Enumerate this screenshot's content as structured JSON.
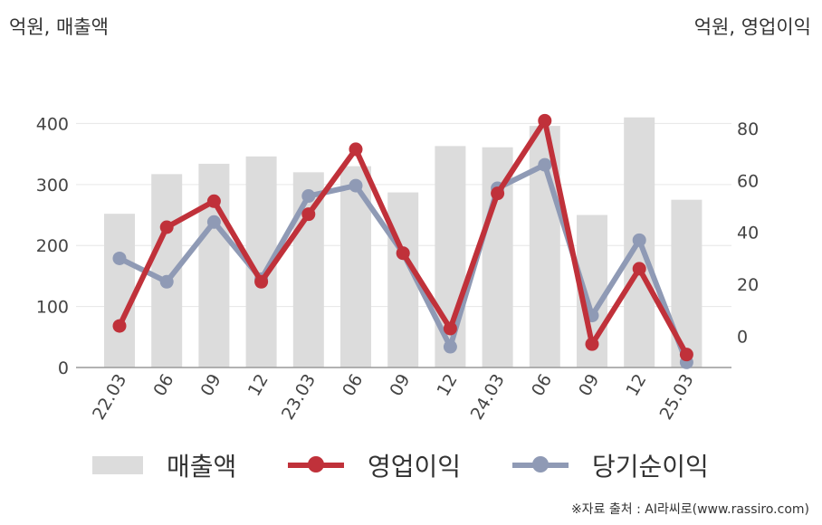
{
  "header": {
    "left_unit": "억원, 매출액",
    "right_unit": "억원, 영업이익"
  },
  "source": "※자료 출처 : AI라씨로(www.rassiro.com)",
  "colors": {
    "bar": "#dcdcdc",
    "operating_profit": "#c0313a",
    "net_income": "#8f9ab5",
    "grid": "#e6e6e6",
    "axis": "#999999"
  },
  "chart_data": {
    "type": "bar+line",
    "categories": [
      "22.03",
      "06",
      "09",
      "12",
      "23.03",
      "06",
      "09",
      "12",
      "24.03",
      "06",
      "09",
      "12",
      "25.03"
    ],
    "left_axis": {
      "ticks": [
        0,
        100,
        200,
        300,
        400
      ],
      "ylim": [
        0,
        460
      ]
    },
    "right_axis": {
      "ticks": [
        0,
        20,
        40,
        60,
        80
      ],
      "ylim": [
        -12,
        96
      ]
    },
    "series": [
      {
        "name": "매출액",
        "type": "bar",
        "axis": "left",
        "values": [
          252,
          317,
          334,
          346,
          320,
          330,
          287,
          363,
          361,
          396,
          250,
          410,
          275
        ]
      },
      {
        "name": "영업이익",
        "type": "line",
        "axis": "right",
        "values": [
          4,
          42,
          52,
          21,
          47,
          72,
          32,
          3,
          55,
          83,
          -3,
          26,
          -7
        ]
      },
      {
        "name": "당기순이익",
        "type": "line",
        "axis": "right",
        "values": [
          30,
          21,
          44,
          22,
          54,
          58,
          32,
          -4,
          57,
          66,
          8,
          37,
          -10
        ]
      }
    ],
    "legend": [
      "매출액",
      "영업이익",
      "당기순이익"
    ],
    "legend_position": "bottom"
  }
}
